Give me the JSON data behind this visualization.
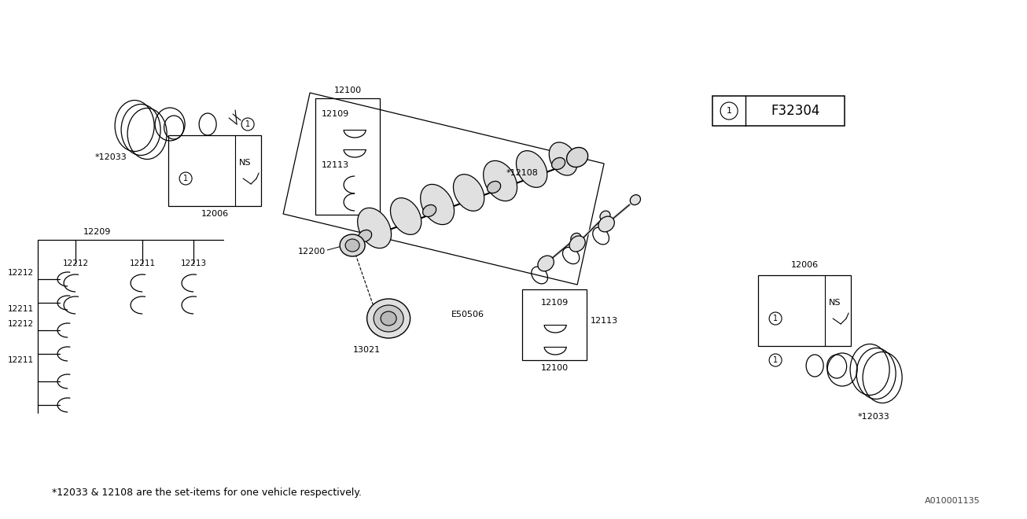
{
  "bg_color": "#ffffff",
  "footer_text": "*12033 & 12108 are the set-items for one vehicle respectively.",
  "part_code": "F32304",
  "watermark": "A010001135",
  "labels": {
    "12033_top": "*12033",
    "12006_top": "12006",
    "12100_top": "12100",
    "12109_top": "12109",
    "12113_top": "12113",
    "12108": "*12108",
    "12200": "12200",
    "13021": "13021",
    "E50506": "E50506",
    "12100_bot": "12100",
    "12109_bot": "12109",
    "12113_bot": "12113",
    "12006_bot": "12006",
    "12033_bot": "*12033",
    "12209": "12209",
    "12212_a": "12212",
    "12211_a": "12211",
    "12212_b": "12212",
    "12211_b": "12211",
    "12211_c": "12211",
    "12212_c": "12212",
    "12213": "12213",
    "NS_top": "NS",
    "NS_bot": "NS"
  }
}
